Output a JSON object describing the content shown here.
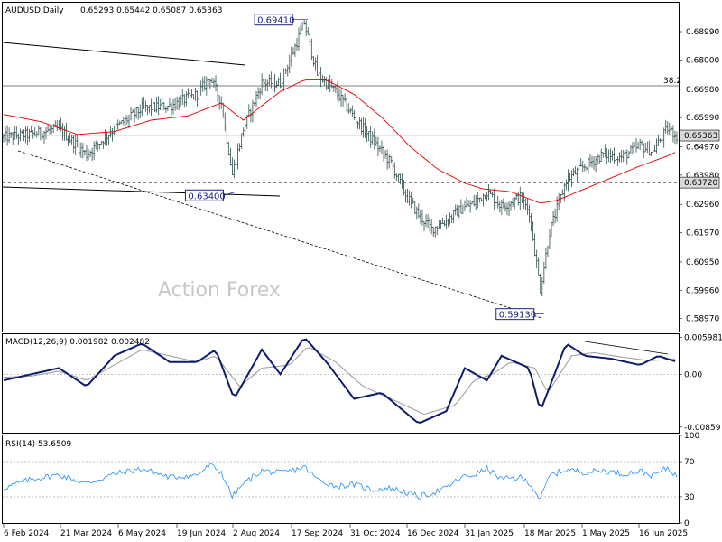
{
  "header": {
    "symbol_timeframe": "AUDUSD,Daily",
    "ohlc": "0.65293 0.65442 0.65087 0.65363"
  },
  "watermark": "Action Forex",
  "price_axis": {
    "ticks": [
      0.6899,
      0.68,
      0.6698,
      0.6599,
      0.6497,
      0.6398,
      0.6296,
      0.6197,
      0.6095,
      0.5996,
      0.5897
    ],
    "tick_labels": [
      "0.68990",
      "0.68000",
      "0.66980",
      "0.65990",
      "0.64970",
      "0.63980",
      "0.62960",
      "0.61970",
      "0.60950",
      "0.59960",
      "0.58970"
    ],
    "current_price": "0.65363",
    "support_price": "0.63720",
    "fib_label": "38.2"
  },
  "annotations": [
    {
      "label": "0.69410",
      "date_index": 163,
      "price": 0.6941
    },
    {
      "label": "0.63400",
      "date_index": 124,
      "price": 0.634
    },
    {
      "label": "0.59130",
      "date_index": 291,
      "price": 0.5913
    }
  ],
  "macd": {
    "label": "MACD(12,26,9) 0.001982 0.002482",
    "ticks": [
      0.005981,
      0.0,
      -0.00859
    ],
    "tick_labels": [
      "0.005981",
      "0.00",
      "-0.00859"
    ]
  },
  "rsi": {
    "label": "RSI(14) 53.6509",
    "ticks": [
      100,
      70,
      30,
      0
    ],
    "tick_labels": [
      "100",
      "70",
      "30",
      "0"
    ]
  },
  "dates": [
    "6 Feb 2024",
    "21 Mar 2024",
    "6 May 2024",
    "19 Jun 2024",
    "2 Aug 2024",
    "17 Sep 2024",
    "31 Oct 2024",
    "16 Dec 2024",
    "31 Jan 2025",
    "18 Mar 2025",
    "1 May 2025",
    "16 Jun 2025"
  ],
  "colors": {
    "bars": "#2f4f4f",
    "ma": "#e00000",
    "macd_line": "#0d1b6e",
    "signal_line": "#a0a0a0",
    "rsi_line": "#1e90ff",
    "annotation": "#1a237e"
  },
  "chart_data": {
    "type": "line",
    "title": "AUDUSD,Daily",
    "series": [
      {
        "key": "close",
        "points": [
          [
            0,
            0.653
          ],
          [
            15,
            0.654
          ],
          [
            30,
            0.656
          ],
          [
            45,
            0.647
          ],
          [
            60,
            0.656
          ],
          [
            75,
            0.663
          ],
          [
            90,
            0.664
          ],
          [
            105,
            0.668
          ],
          [
            112,
            0.674
          ],
          [
            118,
            0.665
          ],
          [
            124,
            0.64
          ],
          [
            130,
            0.656
          ],
          [
            140,
            0.672
          ],
          [
            150,
            0.672
          ],
          [
            157,
            0.683
          ],
          [
            163,
            0.693
          ],
          [
            170,
            0.675
          ],
          [
            180,
            0.669
          ],
          [
            190,
            0.66
          ],
          [
            200,
            0.652
          ],
          [
            210,
            0.644
          ],
          [
            218,
            0.633
          ],
          [
            225,
            0.626
          ],
          [
            232,
            0.621
          ],
          [
            240,
            0.624
          ],
          [
            248,
            0.628
          ],
          [
            255,
            0.63
          ],
          [
            262,
            0.634
          ],
          [
            270,
            0.629
          ],
          [
            280,
            0.632
          ],
          [
            285,
            0.627
          ],
          [
            291,
            0.6
          ],
          [
            296,
            0.62
          ],
          [
            305,
            0.638
          ],
          [
            315,
            0.643
          ],
          [
            325,
            0.647
          ],
          [
            335,
            0.646
          ],
          [
            345,
            0.65
          ],
          [
            352,
            0.648
          ],
          [
            360,
            0.656
          ],
          [
            365,
            0.6536
          ]
        ]
      },
      {
        "key": "ma",
        "points": [
          [
            0,
            0.661
          ],
          [
            20,
            0.6585
          ],
          [
            40,
            0.654
          ],
          [
            60,
            0.655
          ],
          [
            80,
            0.659
          ],
          [
            100,
            0.6605
          ],
          [
            118,
            0.665
          ],
          [
            130,
            0.659
          ],
          [
            140,
            0.664
          ],
          [
            150,
            0.669
          ],
          [
            163,
            0.673
          ],
          [
            175,
            0.673
          ],
          [
            190,
            0.668
          ],
          [
            205,
            0.66
          ],
          [
            220,
            0.65
          ],
          [
            235,
            0.642
          ],
          [
            250,
            0.637
          ],
          [
            260,
            0.635
          ],
          [
            275,
            0.634
          ],
          [
            291,
            0.63
          ],
          [
            300,
            0.631
          ],
          [
            315,
            0.635
          ],
          [
            330,
            0.639
          ],
          [
            345,
            0.643
          ],
          [
            360,
            0.6465
          ],
          [
            365,
            0.648
          ]
        ]
      }
    ],
    "macd_series": [
      {
        "key": "macd",
        "points": [
          [
            0,
            -0.001
          ],
          [
            15,
            0.0
          ],
          [
            30,
            0.001
          ],
          [
            45,
            -0.002
          ],
          [
            60,
            0.003
          ],
          [
            75,
            0.005
          ],
          [
            90,
            0.002
          ],
          [
            105,
            0.002
          ],
          [
            115,
            0.004
          ],
          [
            125,
            -0.004
          ],
          [
            140,
            0.004
          ],
          [
            150,
            0.0
          ],
          [
            163,
            0.006
          ],
          [
            175,
            0.002
          ],
          [
            190,
            -0.004
          ],
          [
            205,
            -0.003
          ],
          [
            225,
            -0.008
          ],
          [
            240,
            -0.006
          ],
          [
            250,
            0.001
          ],
          [
            262,
            -0.001
          ],
          [
            270,
            0.003
          ],
          [
            285,
            0.001
          ],
          [
            291,
            -0.006
          ],
          [
            305,
            0.005
          ],
          [
            315,
            0.003
          ],
          [
            330,
            0.0025
          ],
          [
            345,
            0.0015
          ],
          [
            355,
            0.003
          ],
          [
            365,
            0.002
          ]
        ]
      },
      {
        "key": "signal",
        "points": [
          [
            0,
            -0.0005
          ],
          [
            15,
            -0.0003
          ],
          [
            30,
            0.0005
          ],
          [
            45,
            -0.001
          ],
          [
            60,
            0.0015
          ],
          [
            75,
            0.004
          ],
          [
            90,
            0.003
          ],
          [
            105,
            0.002
          ],
          [
            115,
            0.003
          ],
          [
            128,
            -0.002
          ],
          [
            140,
            0.001
          ],
          [
            155,
            0.0015
          ],
          [
            165,
            0.0045
          ],
          [
            180,
            0.002
          ],
          [
            195,
            -0.002
          ],
          [
            210,
            -0.004
          ],
          [
            228,
            -0.0065
          ],
          [
            245,
            -0.005
          ],
          [
            255,
            -0.001
          ],
          [
            265,
            0.0
          ],
          [
            275,
            0.002
          ],
          [
            288,
            0.001
          ],
          [
            295,
            -0.003
          ],
          [
            308,
            0.003
          ],
          [
            320,
            0.0035
          ],
          [
            335,
            0.0028
          ],
          [
            350,
            0.0022
          ],
          [
            365,
            0.0025
          ]
        ]
      }
    ],
    "rsi_series": [
      {
        "key": "rsi",
        "points": [
          [
            0,
            40
          ],
          [
            15,
            50
          ],
          [
            30,
            55
          ],
          [
            45,
            45
          ],
          [
            60,
            56
          ],
          [
            75,
            62
          ],
          [
            90,
            52
          ],
          [
            105,
            55
          ],
          [
            112,
            66
          ],
          [
            118,
            58
          ],
          [
            124,
            30
          ],
          [
            130,
            45
          ],
          [
            140,
            60
          ],
          [
            150,
            57
          ],
          [
            157,
            60
          ],
          [
            163,
            64
          ],
          [
            170,
            50
          ],
          [
            180,
            42
          ],
          [
            190,
            44
          ],
          [
            200,
            38
          ],
          [
            210,
            40
          ],
          [
            218,
            35
          ],
          [
            225,
            30
          ],
          [
            232,
            34
          ],
          [
            240,
            40
          ],
          [
            248,
            52
          ],
          [
            255,
            55
          ],
          [
            262,
            62
          ],
          [
            270,
            50
          ],
          [
            280,
            52
          ],
          [
            285,
            46
          ],
          [
            291,
            27
          ],
          [
            296,
            54
          ],
          [
            305,
            61
          ],
          [
            315,
            58
          ],
          [
            325,
            60
          ],
          [
            335,
            56
          ],
          [
            345,
            59
          ],
          [
            352,
            54
          ],
          [
            360,
            63
          ],
          [
            365,
            53.65
          ]
        ]
      }
    ],
    "ylim": [
      0.5852,
      0.7
    ],
    "macd_ylim": [
      -0.0095,
      0.0065
    ],
    "rsi_ylim": [
      0,
      100
    ],
    "legend": "none",
    "grid": false
  }
}
